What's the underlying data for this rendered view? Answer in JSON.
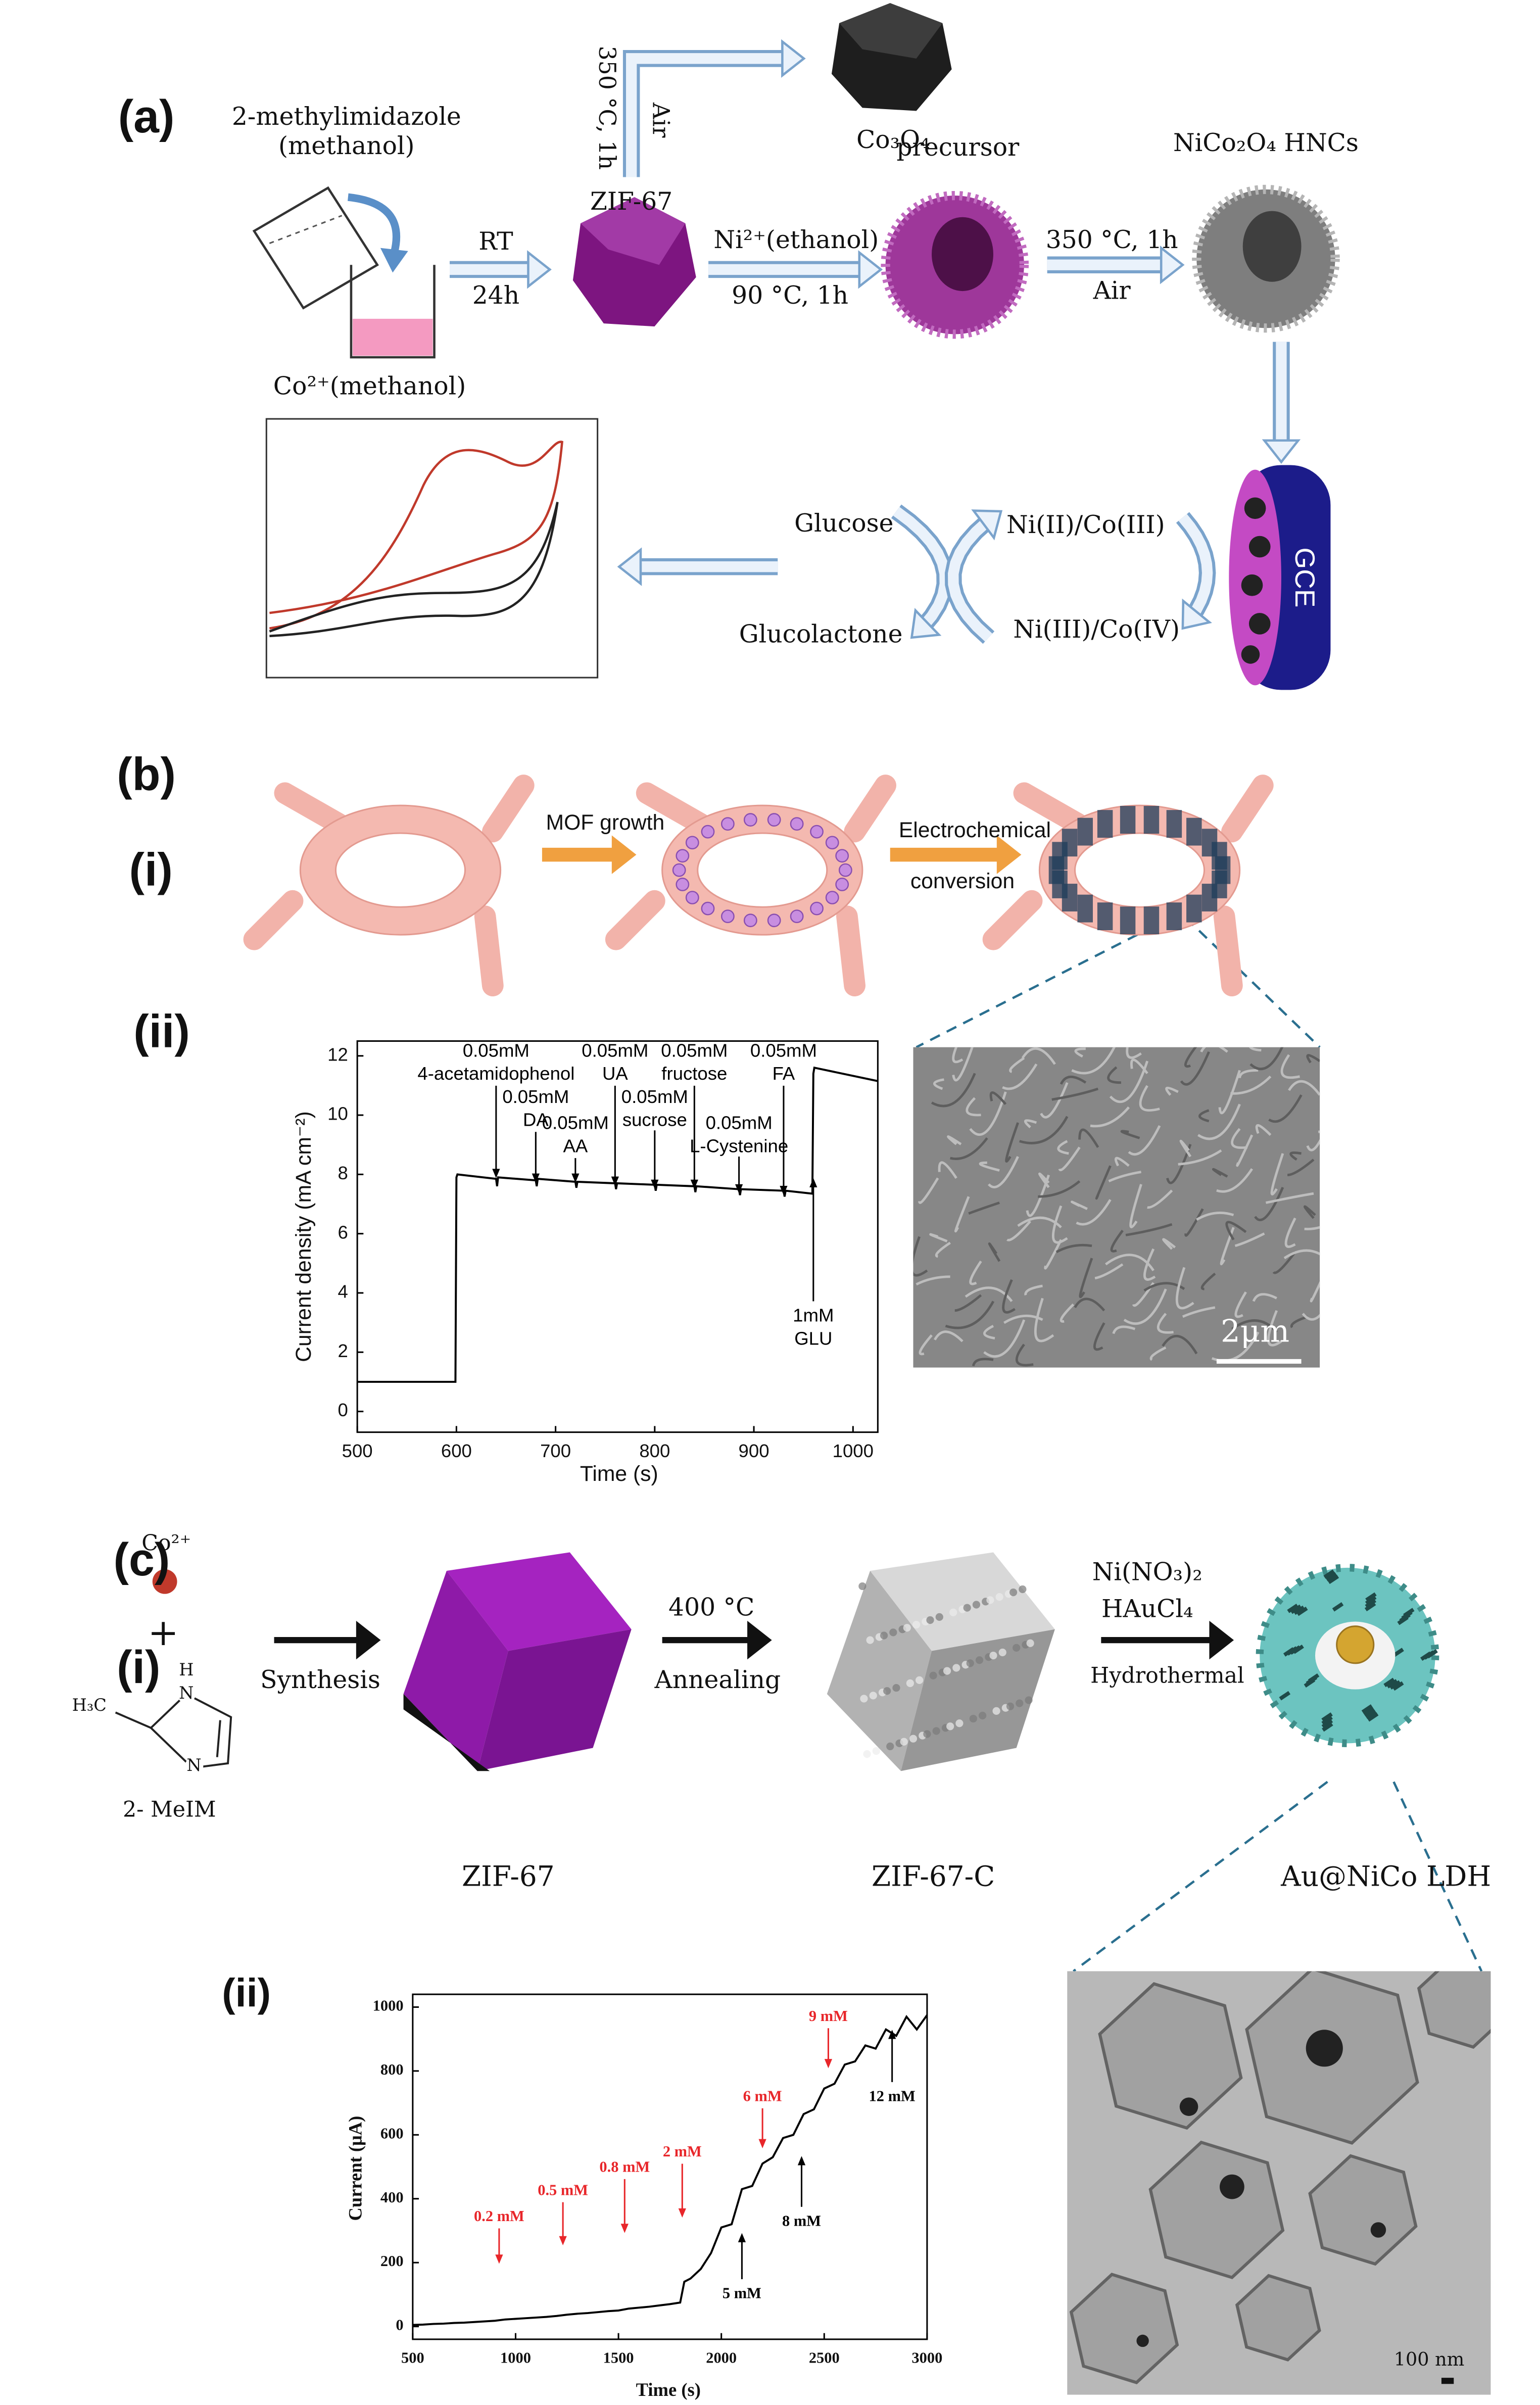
{
  "panel_a": {
    "label": "(a)",
    "reagent": "2-methylimidazole",
    "reagent_solvent": "(methanol)",
    "cobalt": "Co²⁺(methanol)",
    "step1_top": "RT",
    "step1_bottom": "24h",
    "zif": "ZIF-67",
    "step2": "350 °C, 1h",
    "step2_gas": "Air",
    "oxide": "Co₃O₄",
    "step3_top": "Ni²⁺(ethanol)",
    "step3_bottom": "90 °C, 1h",
    "precursor": "precursor",
    "step4_top": "350 °C, 1h",
    "step4_bottom": "Air",
    "product": "NiCo₂O₄ HNCs",
    "electrode": "GCE",
    "glucose": "Glucose",
    "glucolactone": "Glucolactone",
    "redox_low": "Ni(II)/Co(III)",
    "redox_high": "Ni(III)/Co(IV)"
  },
  "panel_b": {
    "label": "(b)",
    "sub_i": "(i)",
    "arrow1": "MOF growth",
    "arrow2_line1": "Electrochemical",
    "arrow2_line2": "conversion",
    "sub_ii": "(ii)",
    "scale": "2μm"
  },
  "panel_c": {
    "label": "(c)",
    "sub_i": "(i)",
    "ion": "Co²⁺",
    "plus": "+",
    "hydrogen": "H",
    "nitrogen_top": "N",
    "nitrogen_bottom": "N",
    "methyl": "H₃C",
    "linker": "2- MeIM",
    "step1": "Synthesis",
    "step2_top": "400 °C",
    "step2_bottom": "Annealing",
    "step3_top": "Ni(NO₃)₂",
    "step3_middle": "HAuCl₄",
    "step3_bottom": "Hydrothermal",
    "product1": "ZIF-67",
    "product2": "ZIF-67-C",
    "product3": "Au@NiCo LDH",
    "sub_ii": "(ii)",
    "scale": "100 nm"
  },
  "chart_data": [
    {
      "type": "line",
      "xlabel": "Time (s)",
      "ylabel": "Current density (mA cm⁻²)",
      "x": [
        500,
        599,
        600,
        601,
        640,
        641,
        642,
        680,
        681,
        682,
        720,
        721,
        722,
        760,
        761,
        762,
        800,
        801,
        802,
        840,
        841,
        842,
        885,
        886,
        887,
        930,
        931,
        932,
        959,
        960,
        961,
        1025
      ],
      "series": [
        {
          "color": "#000000",
          "values": [
            1.0,
            1.0,
            7.9,
            8.0,
            7.85,
            7.6,
            7.9,
            7.8,
            7.6,
            7.85,
            7.75,
            7.55,
            7.75,
            7.7,
            7.5,
            7.7,
            7.65,
            7.45,
            7.65,
            7.6,
            7.4,
            7.6,
            7.5,
            7.3,
            7.5,
            7.45,
            7.25,
            7.45,
            7.35,
            11.4,
            11.6,
            11.15
          ]
        }
      ],
      "xlim": [
        500,
        1025
      ],
      "ylim": [
        -0.7,
        12.5
      ],
      "xticks": [
        500,
        600,
        700,
        800,
        900,
        1000
      ],
      "yticks": [
        0,
        2,
        4,
        6,
        8,
        10,
        12
      ],
      "annotations": [
        {
          "x": 640,
          "lines": [
            "0.05mM",
            "4-acetamidophenol"
          ],
          "color": "#000000"
        },
        {
          "x": 680,
          "lines": [
            "0.05mM",
            "DA"
          ],
          "color": "#000000"
        },
        {
          "x": 720,
          "lines": [
            "0.05mM",
            "AA"
          ],
          "color": "#000000"
        },
        {
          "x": 760,
          "lines": [
            "0.05mM",
            "UA"
          ],
          "color": "#000000"
        },
        {
          "x": 800,
          "lines": [
            "0.05mM",
            "sucrose"
          ],
          "color": "#000000"
        },
        {
          "x": 840,
          "lines": [
            "0.05mM",
            "fructose"
          ],
          "color": "#000000"
        },
        {
          "x": 885,
          "lines": [
            "0.05mM",
            "L-Cystenine"
          ],
          "color": "#000000"
        },
        {
          "x": 930,
          "lines": [
            "0.05mM",
            "FA"
          ],
          "color": "#000000"
        },
        {
          "x": 960,
          "lines": [
            "1mM",
            "GLU"
          ],
          "color": "#000000"
        }
      ]
    },
    {
      "type": "line",
      "xlabel": "Time (s)",
      "ylabel": "Current (μA)",
      "x": [
        500,
        550,
        600,
        650,
        700,
        750,
        800,
        850,
        900,
        950,
        1000,
        1050,
        1100,
        1150,
        1200,
        1250,
        1300,
        1350,
        1400,
        1450,
        1500,
        1550,
        1600,
        1650,
        1700,
        1750,
        1800,
        1820,
        1850,
        1900,
        1950,
        2000,
        2050,
        2100,
        2150,
        2200,
        2250,
        2300,
        2350,
        2400,
        2450,
        2500,
        2550,
        2600,
        2650,
        2700,
        2750,
        2800,
        2850,
        2900,
        2950,
        3000
      ],
      "series": [
        {
          "color": "#000000",
          "values": [
            5,
            6,
            8,
            9,
            11,
            12,
            14,
            16,
            18,
            22,
            24,
            26,
            28,
            30,
            33,
            37,
            40,
            42,
            45,
            48,
            50,
            56,
            59,
            62,
            66,
            70,
            75,
            140,
            150,
            180,
            230,
            310,
            320,
            430,
            440,
            510,
            530,
            590,
            600,
            665,
            680,
            745,
            760,
            820,
            830,
            880,
            870,
            930,
            910,
            970,
            930,
            975
          ]
        }
      ],
      "xlim": [
        500,
        3000
      ],
      "ylim": [
        -40,
        1040
      ],
      "xticks": [
        500,
        1000,
        1500,
        2000,
        2500,
        3000
      ],
      "yticks": [
        0,
        200,
        400,
        600,
        800,
        1000
      ],
      "annotations": [
        {
          "x": 920,
          "lines": [
            "0.2 mM"
          ],
          "color": "#e8262a"
        },
        {
          "x": 1230,
          "lines": [
            "0.5 mM"
          ],
          "color": "#e8262a"
        },
        {
          "x": 1530,
          "lines": [
            "0.8 mM"
          ],
          "color": "#e8262a"
        },
        {
          "x": 1810,
          "lines": [
            "2 mM"
          ],
          "color": "#e8262a"
        },
        {
          "x": 2100,
          "lines": [
            "5 mM"
          ],
          "color": "#000000"
        },
        {
          "x": 2200,
          "lines": [
            "6 mM"
          ],
          "color": "#e8262a"
        },
        {
          "x": 2390,
          "lines": [
            "8 mM"
          ],
          "color": "#000000"
        },
        {
          "x": 2520,
          "lines": [
            "9 mM"
          ],
          "color": "#e8262a"
        },
        {
          "x": 2830,
          "lines": [
            "12 mM"
          ],
          "color": "#000000"
        }
      ]
    }
  ]
}
